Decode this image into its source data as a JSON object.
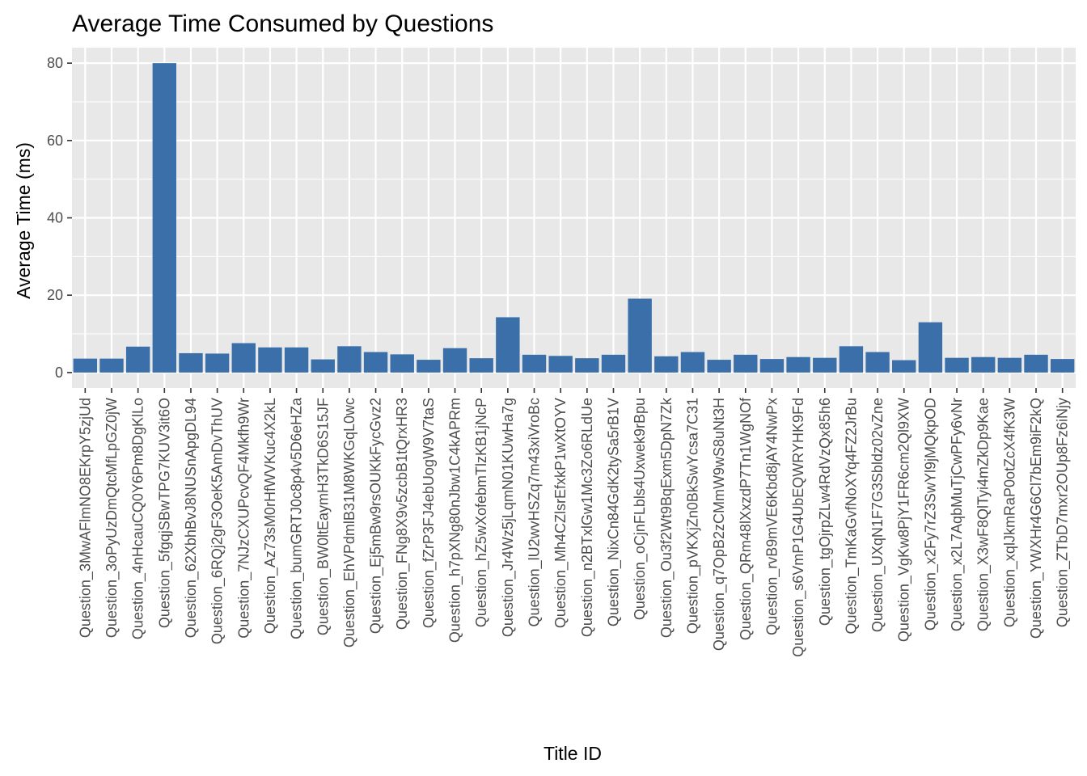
{
  "chart_data": {
    "type": "bar",
    "title": "Average Time Consumed by Questions",
    "xlabel": "Title ID",
    "ylabel": "Average Time (ms)",
    "ylim": [
      -4,
      84
    ],
    "yticks": [
      0,
      20,
      40,
      60,
      80
    ],
    "grid": true,
    "bar_color": "#3a6fa9",
    "panel_color": "#e8e8e8",
    "categories": [
      "Question_3MwAFlmNO8EKrpY5zjUd",
      "Question_3oPyUzDmQtcMfLpGZ0jW",
      "Question_4nHcauCQ0Y6Pm8DgKlLo",
      "Question_5fgqjSBwTPG7KUV3it6O",
      "Question_62XbhBvJ8NUSnApgDL94",
      "Question_6RQj2gF3OeK5AmDvThUV",
      "Question_7NJzCXUPcvQF4Mkfh9Wr",
      "Question_Az73sM0rHfWVKuc4X2kL",
      "Question_bumGRTJ0c8p4v5D6eHZa",
      "Question_BW0ltEaymH3TkD6S15JF",
      "Question_EhVPdmlB31M8WKGqL0wc",
      "Question_Ej5mBw9rsOUKkFycGvz2",
      "Question_FNg8X9v5zcbB1tQrxHR3",
      "Question_fZrP3FJ4ebUogW9V7taS",
      "Question_h7pXNg80nJbw1C4kAPRm",
      "Question_hZ5wXofebmTlzKB1jNcP",
      "Question_Jr4Wz5jLqmN01KUwHa7g",
      "Question_lU2wvHSZq7m43xiVroBc",
      "Question_Mh4CZlsrEfxkP1wXtOYV",
      "Question_n2BTxlGw1Mc3Zo6RLdUe",
      "Question_NixCn84GdK2tySa5rB1V",
      "Question_oCjnFLbls4Uxwek9rBpu",
      "Question_Ou3f2Wt9BqExm5DpN7Zk",
      "Question_pVKXjZn0BkSwYcsa7C31",
      "Question_q7OpB2zCMmW9wS8uNt3H",
      "Question_QRm48lXxzdP7Tn1WgNOf",
      "Question_rvB9mVE6Kbd8jAY4NwPx",
      "Question_s6VmP1G4UbEQWRYHK9Fd",
      "Question_tgOjrpZLw4RdVzQx85h6",
      "Question_TmKaGvfNoXYq4FZ2JrBu",
      "Question_UXqN1F7G3Sbldz02vZne",
      "Question_VgKw8PjY1FR6cm2Ql9XW",
      "Question_x2Fy7rZ3SwYl9jMQkpOD",
      "Question_x2L7AqbMuTjCwPFy6vNr",
      "Question_X3wF8QlTyi4mZkDp9Kae",
      "Question_xqlJkmRaP0otZcX4fK3W",
      "Question_YWXHr4G6Cl7bEm9iF2kQ",
      "Question_ZTbD7mxr2OUp8Fz6iNjy"
    ],
    "values": [
      3.6,
      3.6,
      6.7,
      80.0,
      5.0,
      4.9,
      7.6,
      6.5,
      6.5,
      3.4,
      6.8,
      5.3,
      4.7,
      3.3,
      6.3,
      3.7,
      14.3,
      4.6,
      4.3,
      3.7,
      4.6,
      19.1,
      4.2,
      5.3,
      3.3,
      4.6,
      3.5,
      4.0,
      3.8,
      6.8,
      5.3,
      3.2,
      13.0,
      3.8,
      4.0,
      3.8,
      4.6,
      3.5
    ]
  }
}
